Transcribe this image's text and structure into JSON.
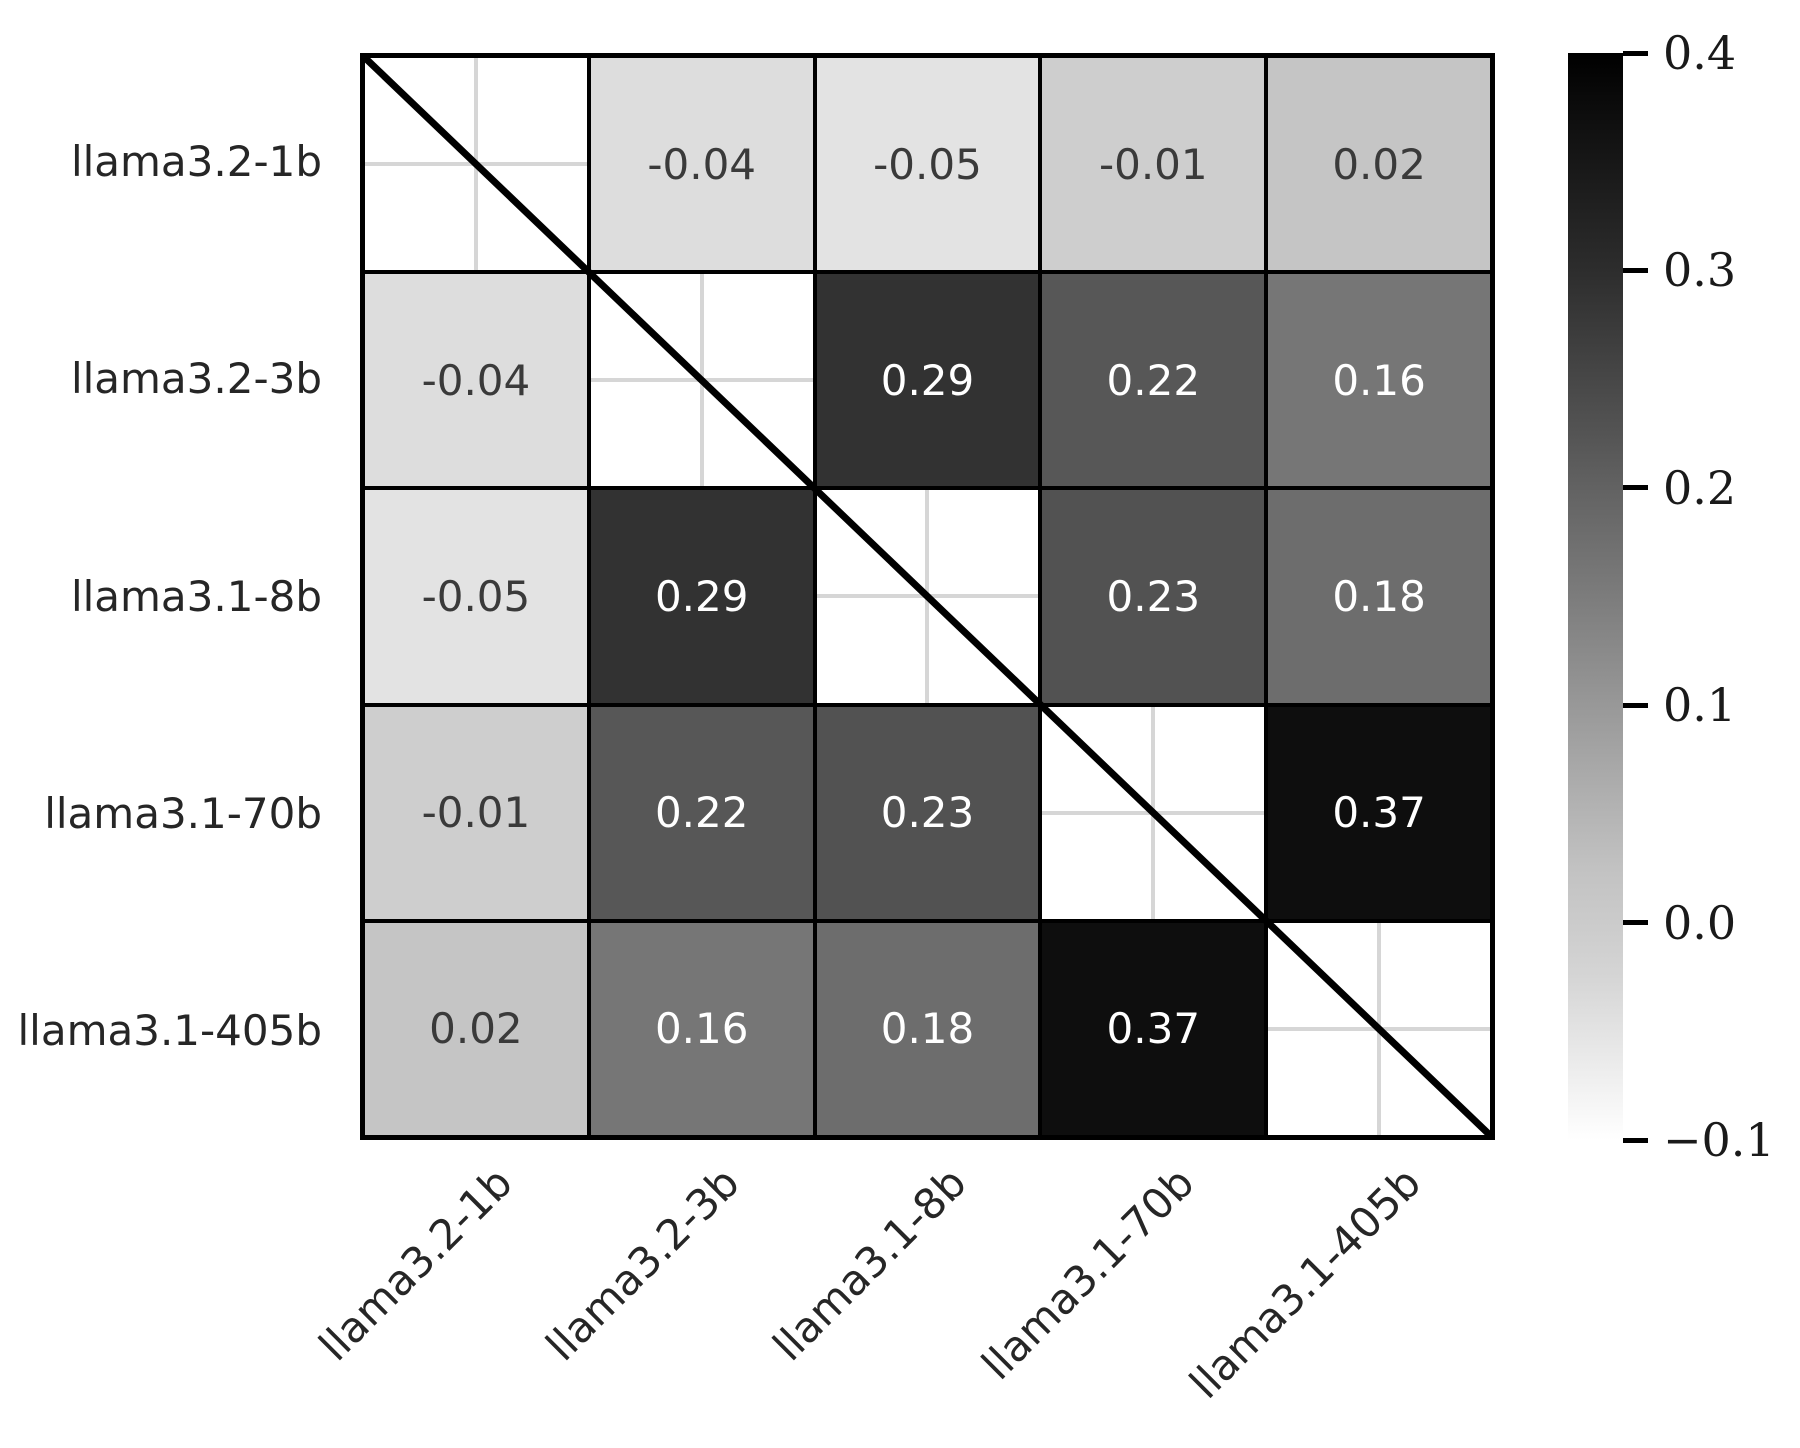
{
  "chart_data": {
    "type": "heatmap",
    "title": "",
    "categories": [
      "llama3.2-1b",
      "llama3.2-3b",
      "llama3.1-8b",
      "llama3.1-70b",
      "llama3.1-405b"
    ],
    "matrix": [
      [
        null,
        -0.04,
        -0.05,
        -0.01,
        0.02
      ],
      [
        -0.04,
        null,
        0.29,
        0.22,
        0.16
      ],
      [
        -0.05,
        0.29,
        null,
        0.23,
        0.18
      ],
      [
        -0.01,
        0.22,
        0.23,
        null,
        0.37
      ],
      [
        0.02,
        0.16,
        0.18,
        0.37,
        null
      ]
    ],
    "cell_labels": [
      [
        "",
        "-0.04",
        "-0.05",
        "-0.01",
        "0.02"
      ],
      [
        "-0.04",
        "",
        "0.29",
        "0.22",
        "0.16"
      ],
      [
        "-0.05",
        "0.29",
        "",
        "0.23",
        "0.18"
      ],
      [
        "-0.01",
        "0.22",
        "0.23",
        "",
        "0.37"
      ],
      [
        "0.02",
        "0.16",
        "0.18",
        "0.37",
        ""
      ]
    ],
    "diagonal": "masked-white-with-black-diagonal-line",
    "colorbar": {
      "vmin": -0.1,
      "vmax": 0.4,
      "colormap": "Greys",
      "ticks": [
        {
          "label": "0.4",
          "value": 0.4
        },
        {
          "label": "0.3",
          "value": 0.3
        },
        {
          "label": "0.2",
          "value": 0.2
        },
        {
          "label": "0.1",
          "value": 0.1
        },
        {
          "label": "0.0",
          "value": 0.0
        },
        {
          "label": "−0.1",
          "value": -0.1
        }
      ]
    },
    "colormap_anchors": [
      [
        -0.1,
        255
      ],
      [
        -0.05,
        227
      ],
      [
        -0.04,
        221
      ],
      [
        -0.01,
        206
      ],
      [
        0.02,
        197
      ],
      [
        0.16,
        118
      ],
      [
        0.18,
        109
      ],
      [
        0.22,
        87
      ],
      [
        0.23,
        82
      ],
      [
        0.29,
        50
      ],
      [
        0.37,
        14
      ],
      [
        0.4,
        0
      ]
    ],
    "colors": {
      "cell_text_dark": "#3a3a3a",
      "cell_text_light": "#ffffff",
      "axis_label": "#262626",
      "grid_line": "#d6d6d6",
      "border": "#000000",
      "diagonal_line": "#000000",
      "tick": "#000000",
      "tick_label": "#1a1a1a"
    },
    "layout_hints": {
      "grid": "shown only inside white diagonal cells, crossing at cell centers",
      "x_tick_rotation_deg": 45,
      "legend_position": "right-colorbar"
    }
  }
}
